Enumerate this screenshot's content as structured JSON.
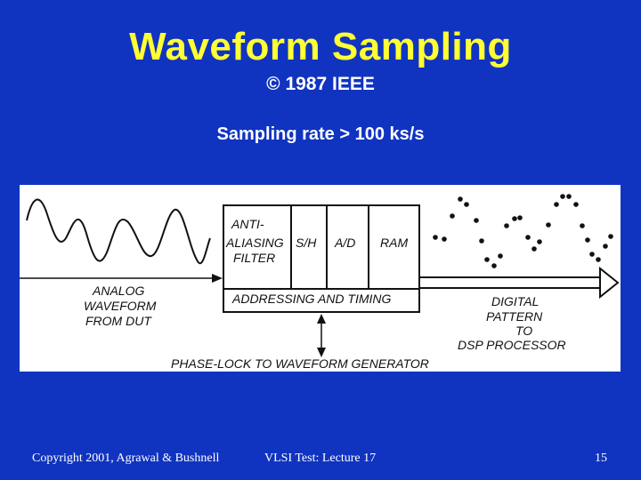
{
  "slide": {
    "title": "Waveform Sampling",
    "subtitle": "© 1987 IEEE",
    "rate": "Sampling rate > 100 ks/s"
  },
  "diagram": {
    "block_anti": [
      "ANTI-",
      "ALIASING",
      "FILTER"
    ],
    "block_sh": "S/H",
    "block_ad": "A/D",
    "block_ram": "RAM",
    "addressing": "ADDRESSING AND TIMING",
    "analog_label": [
      "ANALOG",
      "WAVEFORM",
      "FROM DUT"
    ],
    "digital_label": [
      "DIGITAL",
      "PATTERN",
      "TO",
      "DSP PROCESSOR"
    ],
    "phase_lock": "PHASE-LOCK TO WAVEFORM GENERATOR"
  },
  "footer": {
    "copyright": "Copyright 2001, Agrawal & Bushnell",
    "course": "VLSI Test: Lecture 17",
    "page": "15"
  }
}
